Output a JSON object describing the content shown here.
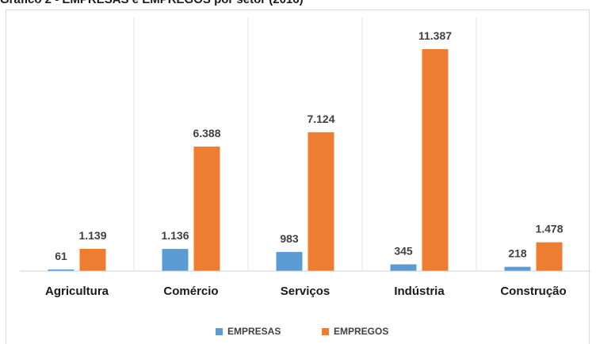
{
  "chart_data": {
    "type": "bar",
    "title": "Gráfico 2 - EMPRESAS e EMPREGOS por setor (2016)",
    "categories": [
      "Agricultura",
      "Comércio",
      "Serviços",
      "Indústria",
      "Construção"
    ],
    "series": [
      {
        "name": "EMPRESAS",
        "color": "#5b9bd5",
        "values": [
          61,
          1136,
          983,
          345,
          218
        ],
        "labels": [
          "61",
          "1.136",
          "983",
          "345",
          "218"
        ]
      },
      {
        "name": "EMPREGOS",
        "color": "#ed7d31",
        "values": [
          1139,
          6388,
          7124,
          11387,
          1478
        ],
        "labels": [
          "1.139",
          "6.388",
          "7.124",
          "11.387",
          "1.478"
        ]
      }
    ],
    "ylim": [
      0,
      11387
    ],
    "grid": "vertical category separators only",
    "legend": "bottom-center"
  }
}
